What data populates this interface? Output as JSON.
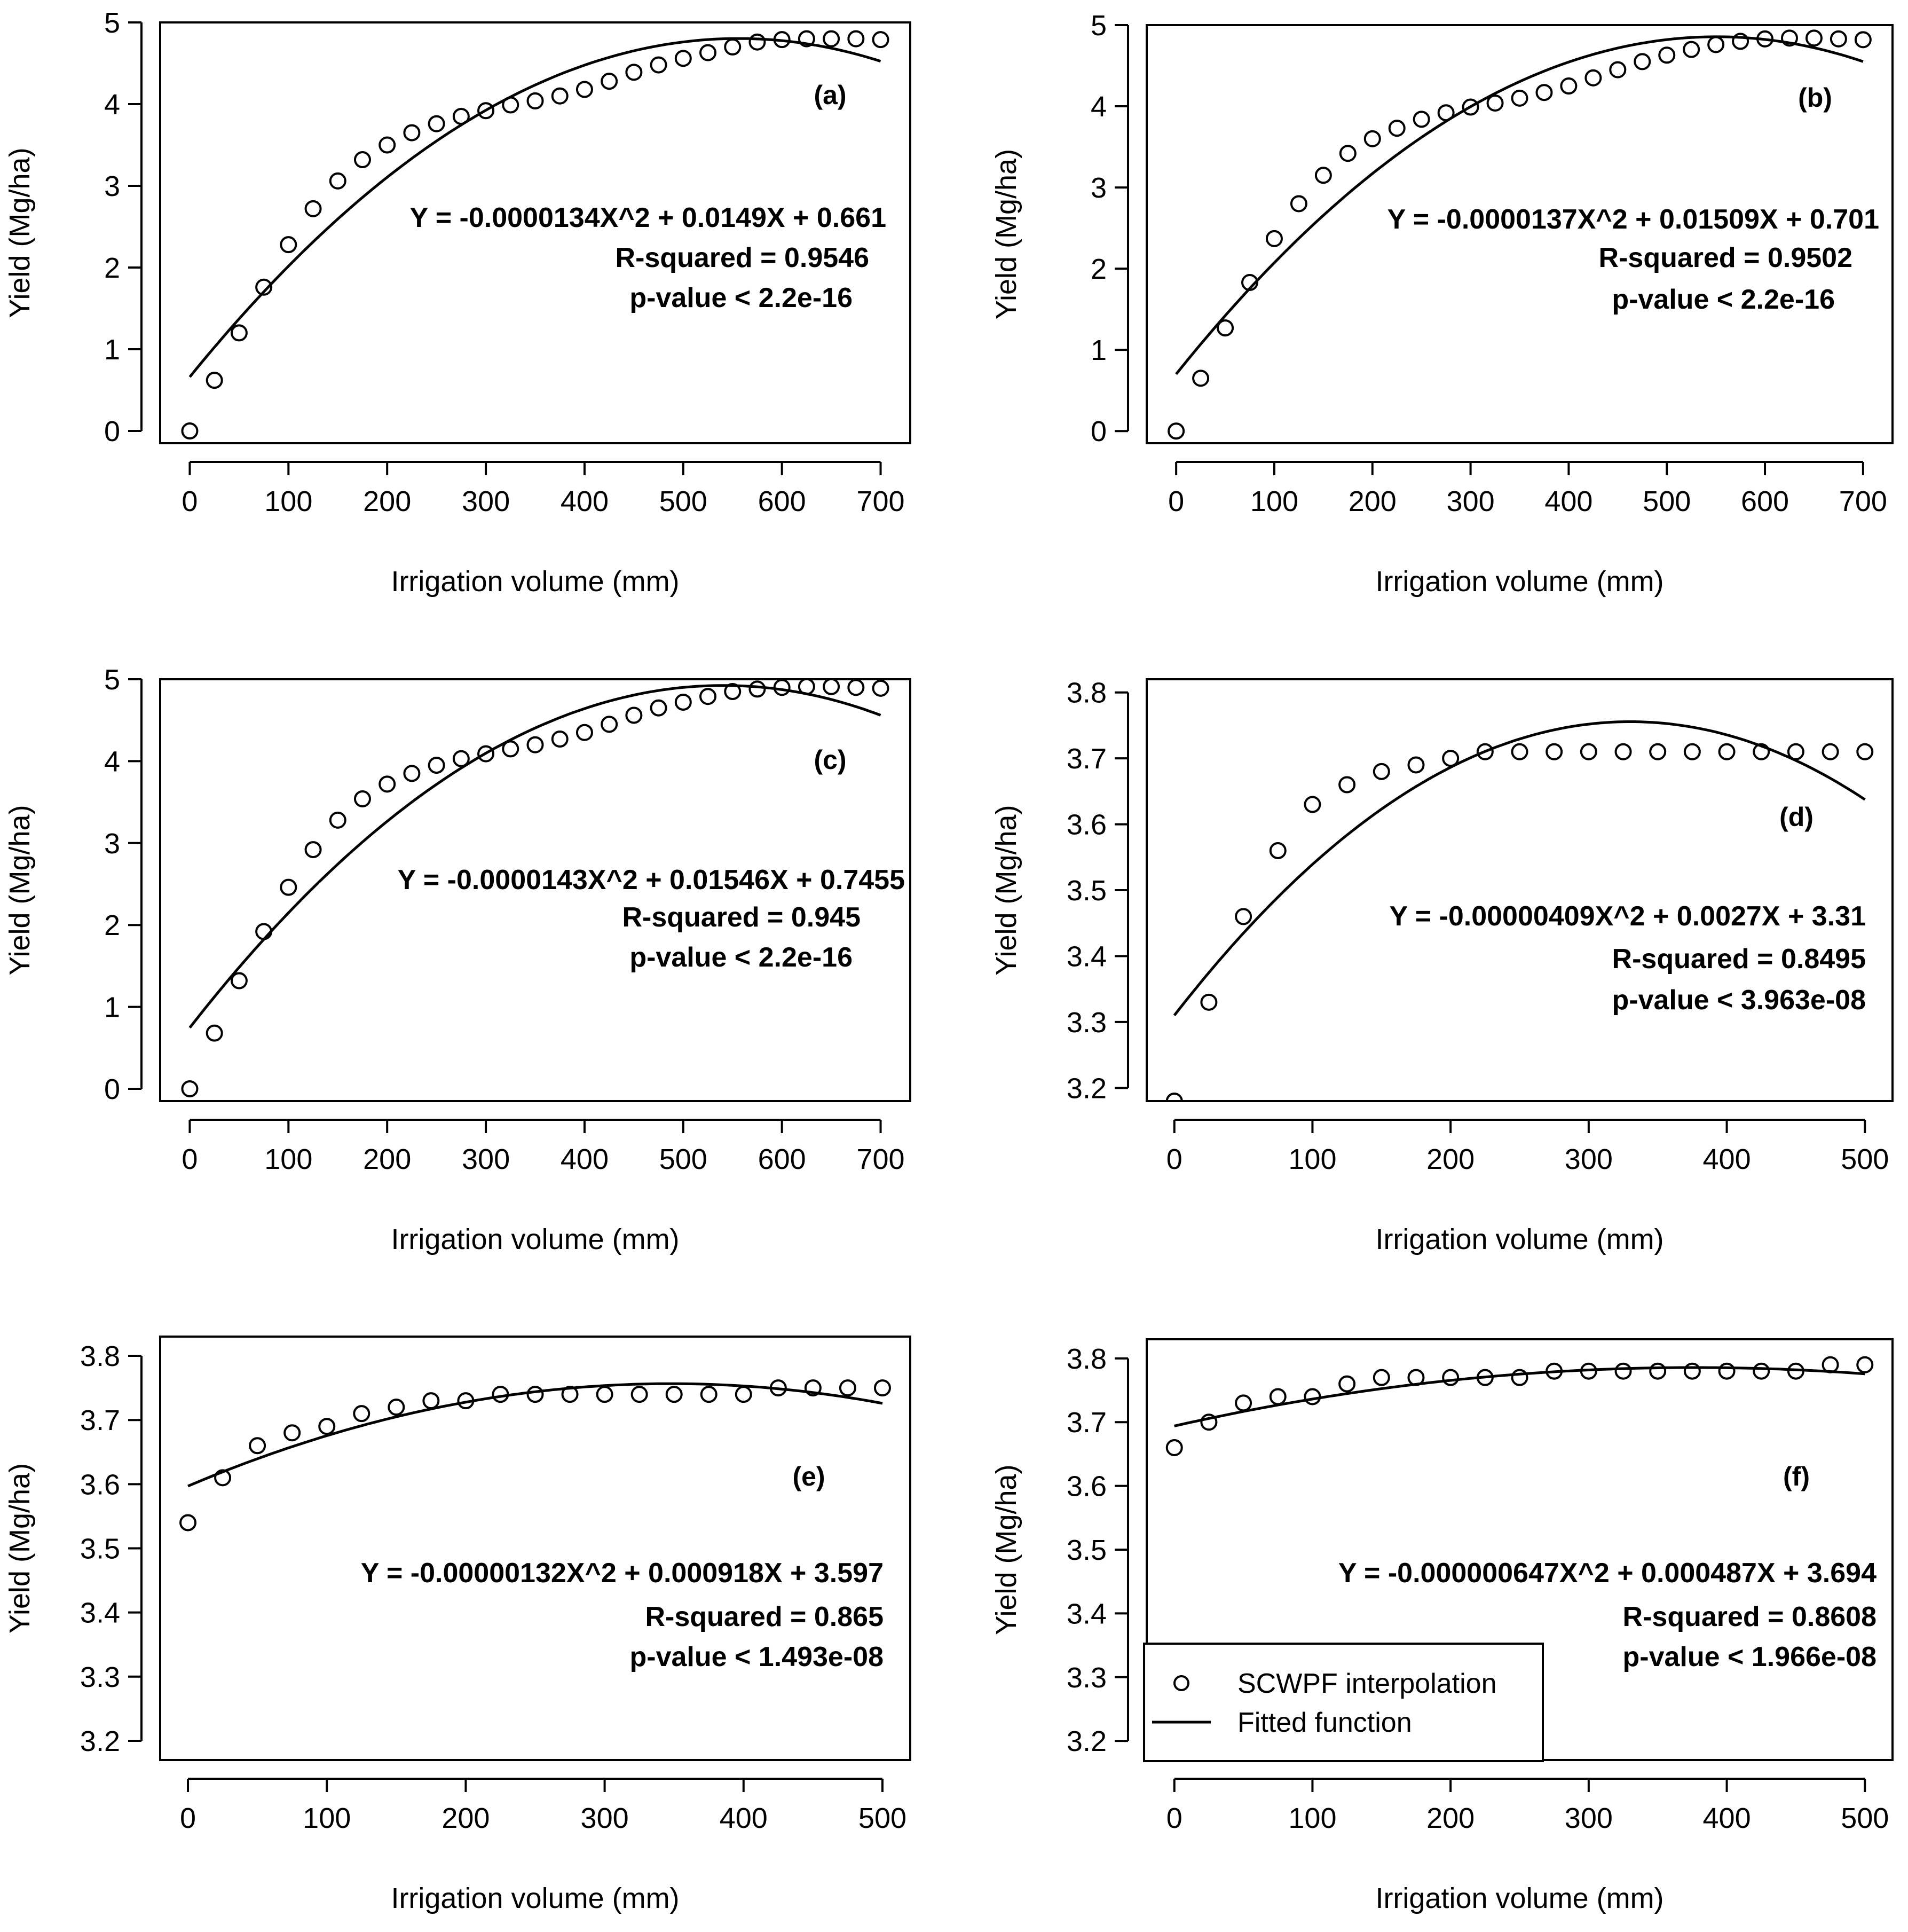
{
  "chart_data": [
    {
      "type": "scatter",
      "panel": "(a)",
      "xlabel": "Irrigation volume (mm)",
      "ylabel": "Yield (Mg/ha)",
      "xlim": [
        -30,
        730
      ],
      "ylim": [
        -0.15,
        5
      ],
      "xticks": [
        0,
        100,
        200,
        300,
        400,
        500,
        600,
        700
      ],
      "yticks": [
        0,
        1,
        2,
        3,
        4,
        5
      ],
      "x": [
        0,
        25,
        50,
        75,
        100,
        125,
        150,
        175,
        200,
        225,
        250,
        275,
        300,
        325,
        350,
        375,
        400,
        425,
        450,
        475,
        500,
        525,
        550,
        575,
        600,
        625,
        650,
        675,
        700
      ],
      "series": [
        {
          "name": "SCWPF interpolation",
          "values": [
            0.0,
            0.62,
            1.2,
            1.76,
            2.28,
            2.72,
            3.06,
            3.32,
            3.5,
            3.65,
            3.76,
            3.85,
            3.92,
            3.99,
            4.04,
            4.1,
            4.18,
            4.28,
            4.39,
            4.48,
            4.56,
            4.63,
            4.7,
            4.76,
            4.79,
            4.8,
            4.8,
            4.8,
            4.79
          ]
        },
        {
          "name": "Fitted function",
          "coeffs": {
            "a": -1.34e-05,
            "b": 0.0149,
            "c": 0.661
          },
          "xrange": [
            0,
            700
          ]
        }
      ],
      "equation": "Y = -0.0000134X^2 + 0.0149X + 0.661",
      "r_squared": "R-squared = 0.9546",
      "p_value": "p-value < 2.2e-16"
    },
    {
      "type": "scatter",
      "panel": "(b)",
      "xlabel": "Irrigation volume (mm)",
      "ylabel": "Yield (Mg/ha)",
      "xlim": [
        -30,
        730
      ],
      "ylim": [
        -0.15,
        5
      ],
      "xticks": [
        0,
        100,
        200,
        300,
        400,
        500,
        600,
        700
      ],
      "yticks": [
        0,
        1,
        2,
        3,
        4,
        5
      ],
      "x": [
        0,
        25,
        50,
        75,
        100,
        125,
        150,
        175,
        200,
        225,
        250,
        275,
        300,
        325,
        350,
        375,
        400,
        425,
        450,
        475,
        500,
        525,
        550,
        575,
        600,
        625,
        650,
        675,
        700
      ],
      "series": [
        {
          "name": "SCWPF interpolation",
          "values": [
            0.0,
            0.65,
            1.27,
            1.83,
            2.37,
            2.8,
            3.15,
            3.42,
            3.6,
            3.73,
            3.84,
            3.92,
            3.99,
            4.04,
            4.1,
            4.17,
            4.25,
            4.35,
            4.45,
            4.55,
            4.63,
            4.7,
            4.76,
            4.8,
            4.83,
            4.84,
            4.84,
            4.83,
            4.82
          ]
        },
        {
          "name": "Fitted function",
          "coeffs": {
            "a": -1.37e-05,
            "b": 0.01509,
            "c": 0.701
          },
          "xrange": [
            0,
            700
          ]
        }
      ],
      "equation": "Y = -0.0000137X^2 + 0.01509X + 0.701",
      "r_squared": "R-squared = 0.9502",
      "p_value": "p-value < 2.2e-16"
    },
    {
      "type": "scatter",
      "panel": "(c)",
      "xlabel": "Irrigation volume (mm)",
      "ylabel": "Yield (Mg/ha)",
      "xlim": [
        -30,
        730
      ],
      "ylim": [
        -0.15,
        5
      ],
      "xticks": [
        0,
        100,
        200,
        300,
        400,
        500,
        600,
        700
      ],
      "yticks": [
        0,
        1,
        2,
        3,
        4,
        5
      ],
      "x": [
        0,
        25,
        50,
        75,
        100,
        125,
        150,
        175,
        200,
        225,
        250,
        275,
        300,
        325,
        350,
        375,
        400,
        425,
        450,
        475,
        500,
        525,
        550,
        575,
        600,
        625,
        650,
        675,
        700
      ],
      "series": [
        {
          "name": "SCWPF interpolation",
          "values": [
            0.0,
            0.68,
            1.32,
            1.92,
            2.46,
            2.92,
            3.28,
            3.54,
            3.72,
            3.85,
            3.95,
            4.03,
            4.09,
            4.15,
            4.2,
            4.27,
            4.35,
            4.45,
            4.56,
            4.65,
            4.72,
            4.79,
            4.85,
            4.88,
            4.9,
            4.91,
            4.91,
            4.9,
            4.89
          ]
        },
        {
          "name": "Fitted function",
          "coeffs": {
            "a": -1.43e-05,
            "b": 0.01546,
            "c": 0.7455
          },
          "xrange": [
            0,
            700
          ]
        }
      ],
      "equation": "Y = -0.0000143X^2 + 0.01546X + 0.7455",
      "r_squared": "R-squared = 0.945",
      "p_value": "p-value < 2.2e-16"
    },
    {
      "type": "scatter",
      "panel": "(d)",
      "xlabel": "Irrigation volume (mm)",
      "ylabel": "Yield (Mg/ha)",
      "xlim": [
        -20,
        520
      ],
      "ylim": [
        3.18,
        3.82
      ],
      "xticks": [
        0,
        100,
        200,
        300,
        400,
        500
      ],
      "yticks": [
        3.2,
        3.3,
        3.4,
        3.5,
        3.6,
        3.7,
        3.8
      ],
      "x": [
        0,
        25,
        50,
        75,
        100,
        125,
        150,
        175,
        200,
        225,
        250,
        275,
        300,
        325,
        350,
        375,
        400,
        425,
        450,
        475,
        500
      ],
      "series": [
        {
          "name": "SCWPF interpolation",
          "values": [
            3.18,
            3.33,
            3.46,
            3.56,
            3.63,
            3.66,
            3.68,
            3.69,
            3.7,
            3.71,
            3.71,
            3.71,
            3.71,
            3.71,
            3.71,
            3.71,
            3.71,
            3.71,
            3.71,
            3.71,
            3.71
          ]
        },
        {
          "name": "Fitted function",
          "coeffs": {
            "a": -4.09e-06,
            "b": 0.0027,
            "c": 3.31
          },
          "xrange": [
            0,
            500
          ]
        }
      ],
      "equation": "Y = -0.00000409X^2 + 0.0027X + 3.31",
      "r_squared": "R-squared = 0.8495",
      "p_value": "p-value < 3.963e-08"
    },
    {
      "type": "scatter",
      "panel": "(e)",
      "xlabel": "Irrigation volume (mm)",
      "ylabel": "Yield (Mg/ha)",
      "xlim": [
        -20,
        520
      ],
      "ylim": [
        3.17,
        3.83
      ],
      "xticks": [
        0,
        100,
        200,
        300,
        400,
        500
      ],
      "yticks": [
        3.2,
        3.3,
        3.4,
        3.5,
        3.6,
        3.7,
        3.8
      ],
      "x": [
        0,
        25,
        50,
        75,
        100,
        125,
        150,
        175,
        200,
        225,
        250,
        275,
        300,
        325,
        350,
        375,
        400,
        425,
        450,
        475,
        500
      ],
      "series": [
        {
          "name": "SCWPF interpolation",
          "values": [
            3.54,
            3.61,
            3.66,
            3.68,
            3.69,
            3.71,
            3.72,
            3.73,
            3.73,
            3.74,
            3.74,
            3.74,
            3.74,
            3.74,
            3.74,
            3.74,
            3.74,
            3.75,
            3.75,
            3.75,
            3.75
          ]
        },
        {
          "name": "Fitted function",
          "coeffs": {
            "a": -1.32e-06,
            "b": 0.000918,
            "c": 3.597
          },
          "xrange": [
            0,
            500
          ]
        }
      ],
      "equation": "Y = -0.00000132X^2 + 0.000918X + 3.597",
      "r_squared": "R-squared = 0.865",
      "p_value": "p-value < 1.493e-08"
    },
    {
      "type": "scatter",
      "panel": "(f)",
      "xlabel": "Irrigation volume (mm)",
      "ylabel": "Yield (Mg/ha)",
      "xlim": [
        -20,
        520
      ],
      "ylim": [
        3.17,
        3.83
      ],
      "xticks": [
        0,
        100,
        200,
        300,
        400,
        500
      ],
      "yticks": [
        3.2,
        3.3,
        3.4,
        3.5,
        3.6,
        3.7,
        3.8
      ],
      "x": [
        0,
        25,
        50,
        75,
        100,
        125,
        150,
        175,
        200,
        225,
        250,
        275,
        300,
        325,
        350,
        375,
        400,
        425,
        450,
        475,
        500
      ],
      "series": [
        {
          "name": "SCWPF interpolation",
          "values": [
            3.66,
            3.7,
            3.73,
            3.74,
            3.74,
            3.76,
            3.77,
            3.77,
            3.77,
            3.77,
            3.77,
            3.78,
            3.78,
            3.78,
            3.78,
            3.78,
            3.78,
            3.78,
            3.78,
            3.79,
            3.79
          ]
        },
        {
          "name": "Fitted function",
          "coeffs": {
            "a": -6.47e-07,
            "b": 0.000487,
            "c": 3.694
          },
          "xrange": [
            0,
            500
          ]
        }
      ],
      "equation": "Y = -0.000000647X^2 + 0.000487X + 3.694",
      "r_squared": "R-squared = 0.8608",
      "p_value": "p-value < 1.966e-08",
      "legend": {
        "position": "bottom-left",
        "items": [
          {
            "label": "SCWPF interpolation",
            "symbol": "circle"
          },
          {
            "label": "Fitted function",
            "symbol": "line"
          }
        ]
      }
    }
  ]
}
